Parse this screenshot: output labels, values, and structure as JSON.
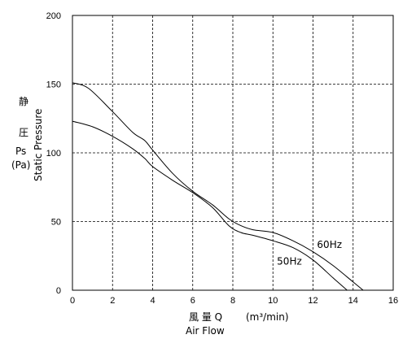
{
  "chart_data": {
    "type": "line",
    "xlim": [
      0,
      16
    ],
    "ylim": [
      0,
      200
    ],
    "xticks": [
      0,
      2,
      4,
      6,
      8,
      10,
      12,
      14,
      16
    ],
    "yticks": [
      0,
      50,
      100,
      150,
      200
    ],
    "grid": true,
    "xlabel": {
      "cn": "風 量 Q",
      "unit": "(m³/min)",
      "en": "Air Flow"
    },
    "ylabel": {
      "cn1": "静",
      "cn2": "圧",
      "sym": "Ps",
      "unit": "(Pa)",
      "en": "Static Pressure"
    },
    "series": [
      {
        "name": "60Hz",
        "x": [
          0,
          0.8,
          2,
          3,
          3.6,
          4,
          5,
          6,
          7,
          7.8,
          8.4,
          9,
          10,
          11,
          12,
          13,
          14,
          14.5
        ],
        "y": [
          151,
          147,
          130,
          115,
          109,
          102,
          85,
          72,
          62,
          52,
          47,
          44,
          42,
          36,
          28,
          18,
          6,
          0
        ]
      },
      {
        "name": "50Hz",
        "x": [
          0,
          1,
          2,
          3,
          3.6,
          4,
          5,
          6,
          7,
          7.8,
          8.4,
          9,
          10,
          11,
          12,
          13,
          13.7
        ],
        "y": [
          123,
          119,
          112,
          103,
          96,
          90,
          80,
          71,
          60,
          47,
          42,
          40,
          36,
          31,
          22,
          9,
          0
        ]
      }
    ]
  }
}
